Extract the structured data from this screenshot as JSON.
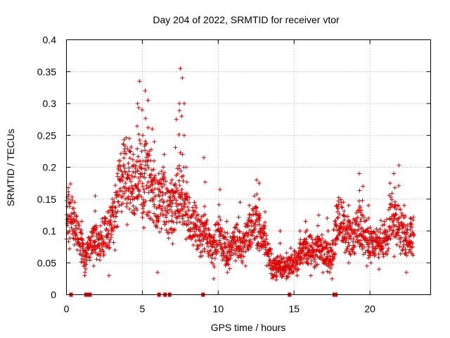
{
  "chart_data": {
    "type": "scatter",
    "title": "Day 204 of 2022, SRMTID for receiver vtor",
    "xlabel": "GPS time / hours",
    "ylabel": "SRMTID / TECUs",
    "xlim": [
      0,
      24
    ],
    "ylim": [
      0,
      0.4
    ],
    "xticks": [
      "0",
      "5",
      "10",
      "15",
      "20"
    ],
    "yticks": [
      "0",
      "0.05",
      "0.1",
      "0.15",
      "0.2",
      "0.25",
      "0.3",
      "0.35",
      "0.4"
    ],
    "grid": true,
    "marker": "+",
    "series_color": "#e00000",
    "trend": [
      [
        0.0,
        0.12
      ],
      [
        0.3,
        0.13
      ],
      [
        0.6,
        0.11
      ],
      [
        0.9,
        0.085
      ],
      [
        1.2,
        0.055
      ],
      [
        1.5,
        0.07
      ],
      [
        1.8,
        0.085
      ],
      [
        2.1,
        0.08
      ],
      [
        2.4,
        0.09
      ],
      [
        2.7,
        0.1
      ],
      [
        3.0,
        0.11
      ],
      [
        3.3,
        0.14
      ],
      [
        3.6,
        0.18
      ],
      [
        3.9,
        0.2
      ],
      [
        4.2,
        0.18
      ],
      [
        4.5,
        0.16
      ],
      [
        4.8,
        0.21
      ],
      [
        5.0,
        0.17
      ],
      [
        5.2,
        0.19
      ],
      [
        5.5,
        0.17
      ],
      [
        5.8,
        0.15
      ],
      [
        6.1,
        0.14
      ],
      [
        6.4,
        0.16
      ],
      [
        6.7,
        0.13
      ],
      [
        7.0,
        0.13
      ],
      [
        7.3,
        0.15
      ],
      [
        7.6,
        0.16
      ],
      [
        7.9,
        0.13
      ],
      [
        8.2,
        0.115
      ],
      [
        8.5,
        0.11
      ],
      [
        8.8,
        0.09
      ],
      [
        9.1,
        0.1
      ],
      [
        9.4,
        0.08
      ],
      [
        9.7,
        0.07
      ],
      [
        10.0,
        0.1
      ],
      [
        10.3,
        0.08
      ],
      [
        10.6,
        0.06
      ],
      [
        10.9,
        0.075
      ],
      [
        11.2,
        0.085
      ],
      [
        11.5,
        0.07
      ],
      [
        11.8,
        0.09
      ],
      [
        12.1,
        0.1
      ],
      [
        12.4,
        0.12
      ],
      [
        12.7,
        0.1
      ],
      [
        13.0,
        0.09
      ],
      [
        13.3,
        0.06
      ],
      [
        13.6,
        0.045
      ],
      [
        13.9,
        0.045
      ],
      [
        14.2,
        0.04
      ],
      [
        14.5,
        0.045
      ],
      [
        14.8,
        0.05
      ],
      [
        15.1,
        0.055
      ],
      [
        15.4,
        0.06
      ],
      [
        15.7,
        0.075
      ],
      [
        16.0,
        0.07
      ],
      [
        16.3,
        0.06
      ],
      [
        16.6,
        0.075
      ],
      [
        16.9,
        0.065
      ],
      [
        17.2,
        0.06
      ],
      [
        17.5,
        0.06
      ],
      [
        17.8,
        0.11
      ],
      [
        18.1,
        0.12
      ],
      [
        18.4,
        0.095
      ],
      [
        18.7,
        0.085
      ],
      [
        19.0,
        0.09
      ],
      [
        19.3,
        0.11
      ],
      [
        19.6,
        0.1
      ],
      [
        19.9,
        0.08
      ],
      [
        20.2,
        0.075
      ],
      [
        20.5,
        0.08
      ],
      [
        20.8,
        0.085
      ],
      [
        21.1,
        0.095
      ],
      [
        21.4,
        0.13
      ],
      [
        21.7,
        0.12
      ],
      [
        22.0,
        0.1
      ],
      [
        22.3,
        0.09
      ],
      [
        22.6,
        0.09
      ],
      [
        22.9,
        0.1
      ]
    ],
    "peaks": [
      [
        0.1,
        0.168
      ],
      [
        0.5,
        0.145
      ],
      [
        1.0,
        0.115
      ],
      [
        1.9,
        0.155
      ],
      [
        3.0,
        0.15
      ],
      [
        3.5,
        0.21
      ],
      [
        3.8,
        0.225
      ],
      [
        4.1,
        0.245
      ],
      [
        4.4,
        0.22
      ],
      [
        4.7,
        0.3
      ],
      [
        4.8,
        0.335
      ],
      [
        5.0,
        0.29
      ],
      [
        5.2,
        0.32
      ],
      [
        5.4,
        0.305
      ],
      [
        5.6,
        0.26
      ],
      [
        5.8,
        0.24
      ],
      [
        6.1,
        0.19
      ],
      [
        6.4,
        0.22
      ],
      [
        6.9,
        0.18
      ],
      [
        7.2,
        0.275
      ],
      [
        7.4,
        0.3
      ],
      [
        7.5,
        0.355
      ],
      [
        7.6,
        0.34
      ],
      [
        7.7,
        0.3
      ],
      [
        7.9,
        0.2
      ],
      [
        8.5,
        0.14
      ],
      [
        9.1,
        0.215
      ],
      [
        10.1,
        0.165
      ],
      [
        10.6,
        0.115
      ],
      [
        11.4,
        0.145
      ],
      [
        12.0,
        0.14
      ],
      [
        12.5,
        0.18
      ],
      [
        12.7,
        0.175
      ],
      [
        13.1,
        0.13
      ],
      [
        14.1,
        0.1
      ],
      [
        15.4,
        0.1
      ],
      [
        15.8,
        0.115
      ],
      [
        16.6,
        0.125
      ],
      [
        17.2,
        0.12
      ],
      [
        17.8,
        0.14
      ],
      [
        18.3,
        0.145
      ],
      [
        18.6,
        0.14
      ],
      [
        19.3,
        0.19
      ],
      [
        19.5,
        0.17
      ],
      [
        19.9,
        0.14
      ],
      [
        21.3,
        0.175
      ],
      [
        21.6,
        0.19
      ],
      [
        21.9,
        0.203
      ],
      [
        22.3,
        0.14
      ],
      [
        22.7,
        0.12
      ]
    ],
    "troughs": [
      [
        0.2,
        0.072
      ],
      [
        1.2,
        0.03
      ],
      [
        1.8,
        0.045
      ],
      [
        2.8,
        0.03
      ],
      [
        3.2,
        0.07
      ],
      [
        4.0,
        0.11
      ],
      [
        5.1,
        0.105
      ],
      [
        6.0,
        0.035
      ],
      [
        7.0,
        0.08
      ],
      [
        8.8,
        0.06
      ],
      [
        9.7,
        0.025
      ],
      [
        10.6,
        0.035
      ],
      [
        11.8,
        0.045
      ],
      [
        13.8,
        0.03
      ],
      [
        14.5,
        0.025
      ],
      [
        15.2,
        0.03
      ],
      [
        16.1,
        0.03
      ],
      [
        16.9,
        0.035
      ],
      [
        17.5,
        0.025
      ],
      [
        18.6,
        0.05
      ],
      [
        19.8,
        0.045
      ],
      [
        20.6,
        0.04
      ],
      [
        21.6,
        0.06
      ],
      [
        22.4,
        0.035
      ]
    ],
    "zero_markers": [
      0.3,
      1.3,
      1.45,
      1.5,
      1.55,
      6.1,
      6.5,
      6.8,
      9.0,
      14.7,
      17.65,
      17.75
    ]
  }
}
